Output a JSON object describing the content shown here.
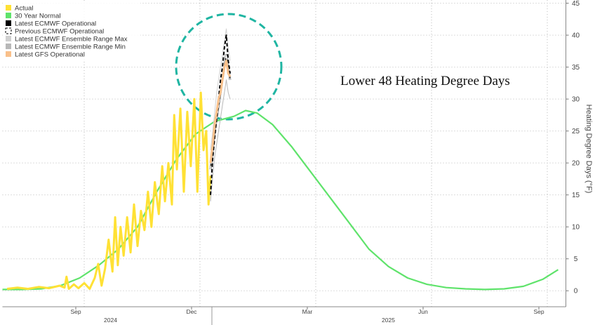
{
  "chart_data": {
    "type": "line",
    "title": "Lower 48 Heating Degree Days",
    "y_label": "Heating Degree Days (°F)",
    "xlim": [
      0.1,
      14.7
    ],
    "ylim": [
      -2.5,
      45.5
    ],
    "xticks": [
      {
        "value": 2,
        "label": "Sep"
      },
      {
        "value": 5,
        "label": "Dec"
      },
      {
        "value": 8,
        "label": "Mar"
      },
      {
        "value": 11,
        "label": "Jun"
      },
      {
        "value": 14,
        "label": "Sep"
      }
    ],
    "year_ticks": [
      {
        "value": 2.9,
        "label": "2024"
      },
      {
        "value": 10.1,
        "label": "2025"
      }
    ],
    "yticks": [
      0,
      5,
      10,
      15,
      20,
      25,
      30,
      35,
      40,
      45
    ],
    "grid": true,
    "legend": "top-left",
    "series": [
      {
        "name": "Actual",
        "color": "#ffe135",
        "dash": false,
        "width": 3,
        "x": [
          0.22,
          0.49,
          0.76,
          1.04,
          1.31,
          1.58,
          1.71,
          1.76,
          1.82,
          1.95,
          2.07,
          2.22,
          2.36,
          2.49,
          2.58,
          2.67,
          2.76,
          2.85,
          2.95,
          3.02,
          3.09,
          3.16,
          3.24,
          3.33,
          3.42,
          3.51,
          3.6,
          3.69,
          3.78,
          3.87,
          3.96,
          4.05,
          4.15,
          4.24,
          4.31,
          4.4,
          4.49,
          4.55,
          4.62,
          4.71,
          4.8,
          4.89,
          4.98,
          5.07,
          5.15,
          5.24,
          5.31,
          5.38,
          5.44,
          5.49
        ],
        "values": [
          0.3,
          0.5,
          0.3,
          0.6,
          0.4,
          0.8,
          0.5,
          2.2,
          0.3,
          1.0,
          0.4,
          1.2,
          0.3,
          2.0,
          4.2,
          0.8,
          3.5,
          8.0,
          3.0,
          11.5,
          4.0,
          10.0,
          5.5,
          11.5,
          6.0,
          13.5,
          7.0,
          12.5,
          9.5,
          15.5,
          10.0,
          17.0,
          12.0,
          19.5,
          14.0,
          20.0,
          13.5,
          27.5,
          19.0,
          28.5,
          15.5,
          28.0,
          19.5,
          30.0,
          15.5,
          31.0,
          22.0,
          25.0,
          13.5,
          18.0
        ]
      },
      {
        "name": "30 Year Normal",
        "color": "#5fe36b",
        "dash": false,
        "width": 2.2,
        "x": [
          0.1,
          0.6,
          1.1,
          1.6,
          2.1,
          2.6,
          3.1,
          3.6,
          4.1,
          4.6,
          5.1,
          5.6,
          6.1,
          6.4,
          6.7,
          7.1,
          7.6,
          8.1,
          8.6,
          9.1,
          9.6,
          10.1,
          10.6,
          11.1,
          11.6,
          12.1,
          12.6,
          13.1,
          13.6,
          14.1,
          14.5
        ],
        "values": [
          0.2,
          0.2,
          0.3,
          0.8,
          2.0,
          4.0,
          6.5,
          10.0,
          15.5,
          20.5,
          24.5,
          26.5,
          27.3,
          28.2,
          27.8,
          26.0,
          22.5,
          18.5,
          14.5,
          10.5,
          6.5,
          3.8,
          2.0,
          1.0,
          0.5,
          0.3,
          0.2,
          0.3,
          0.7,
          1.8,
          3.3
        ]
      },
      {
        "name": "Latest ECMWF Operational",
        "color": "#000000",
        "dash": true,
        "width": 2,
        "x": [
          5.49,
          5.55,
          5.6,
          5.65,
          5.7,
          5.75,
          5.8,
          5.85,
          5.9,
          5.95,
          6.0
        ],
        "values": [
          15,
          21,
          24,
          27,
          30,
          33,
          35,
          38,
          40,
          36,
          34
        ]
      },
      {
        "name": "Previous ECMWF Operational",
        "color": "#ffffff",
        "dash": true,
        "width": 1.5,
        "x": [
          5.49,
          5.55,
          5.6,
          5.65,
          5.7,
          5.75,
          5.8,
          5.85,
          5.9,
          5.95,
          6.0
        ],
        "values": [
          19,
          22,
          25,
          27,
          29,
          31,
          33,
          35,
          37,
          35,
          33
        ]
      },
      {
        "name": "Latest ECMWF Ensemble Range Max",
        "color": "#d0d0d0",
        "dash": false,
        "width": 1,
        "x": [
          5.49,
          5.55,
          5.6,
          5.65,
          5.7,
          5.75,
          5.8,
          5.85,
          5.9,
          5.95,
          6.0
        ],
        "values": [
          22,
          25,
          28,
          31,
          33,
          35,
          37,
          39,
          41,
          38,
          36
        ]
      },
      {
        "name": "Latest ECMWF Ensemble Range Min",
        "color": "#b8b8b8",
        "dash": false,
        "width": 1,
        "x": [
          5.49,
          5.55,
          5.6,
          5.65,
          5.7,
          5.75,
          5.8,
          5.85,
          5.9,
          5.95,
          6.0
        ],
        "values": [
          14,
          18,
          21,
          23,
          25,
          27,
          29,
          31,
          33,
          31,
          30
        ]
      },
      {
        "name": "Latest GFS Operational",
        "color": "#f9c08a",
        "dash": false,
        "width": 3,
        "x": [
          5.49,
          5.55,
          5.6,
          5.65,
          5.7,
          5.75,
          5.8,
          5.85,
          5.9,
          5.95,
          6.0
        ],
        "values": [
          20,
          23,
          26,
          28,
          30,
          31,
          33,
          35,
          36,
          34,
          33.5
        ]
      }
    ]
  }
}
